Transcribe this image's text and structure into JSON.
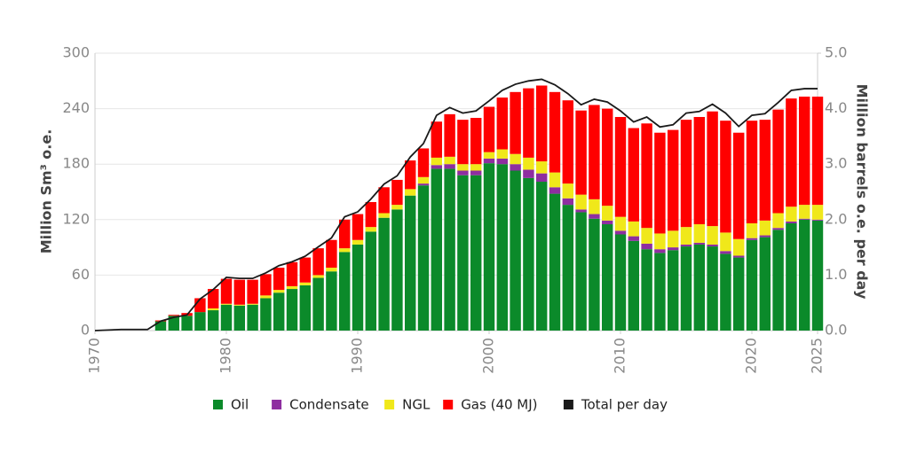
{
  "chart_data": {
    "type": "bar",
    "x": [
      1970,
      1971,
      1972,
      1973,
      1974,
      1975,
      1976,
      1977,
      1978,
      1979,
      1980,
      1981,
      1982,
      1983,
      1984,
      1985,
      1986,
      1987,
      1988,
      1989,
      1990,
      1991,
      1992,
      1993,
      1994,
      1995,
      1996,
      1997,
      1998,
      1999,
      2000,
      2001,
      2002,
      2003,
      2004,
      2005,
      2006,
      2007,
      2008,
      2009,
      2010,
      2011,
      2012,
      2013,
      2014,
      2015,
      2016,
      2017,
      2018,
      2019,
      2020,
      2021,
      2022,
      2023,
      2024,
      2025
    ],
    "y_label": "Million Sm³ o.e.",
    "y2_label": "Million barrels o.e. per day",
    "xlim": [
      1970,
      2025
    ],
    "xticks": [
      1970,
      1980,
      1990,
      2000,
      2010,
      2020,
      2025
    ],
    "ylim": [
      0,
      300
    ],
    "yticks": [
      0,
      60,
      120,
      180,
      240,
      300
    ],
    "y2lim": [
      0,
      5
    ],
    "y2ticks": [
      {
        "value": 0,
        "label": "0.0"
      },
      {
        "value": 1,
        "label": "1.0"
      },
      {
        "value": 2,
        "label": "2.0"
      },
      {
        "value": 3,
        "label": "3.0"
      },
      {
        "value": 4,
        "label": "4.0"
      },
      {
        "value": 5,
        "label": "5.0"
      }
    ],
    "grid": true,
    "legend": "bottom",
    "series": [
      {
        "name": "Oil",
        "color": "#0b8a2a",
        "values": [
          0,
          0,
          0,
          0,
          0,
          10,
          16,
          16,
          20,
          22,
          28,
          27,
          28,
          35,
          41,
          45,
          49,
          57,
          64,
          85,
          93,
          107,
          122,
          131,
          146,
          157,
          175,
          175,
          168,
          168,
          181,
          180,
          173,
          165,
          161,
          148,
          136,
          128,
          121,
          115,
          104,
          97,
          88,
          84,
          87,
          91,
          93,
          91,
          83,
          79,
          98,
          101,
          109,
          116,
          120,
          119
        ]
      },
      {
        "name": "Condensate",
        "color": "#8e2ea0",
        "values": [
          0,
          0,
          0,
          0,
          0,
          0,
          0,
          0,
          0,
          0,
          0,
          0,
          0,
          0,
          0,
          0,
          0,
          0,
          0,
          0,
          0,
          0,
          0,
          0,
          0,
          2,
          4,
          5,
          5,
          5,
          5,
          6,
          7,
          9,
          9,
          7,
          7,
          3,
          5,
          4,
          4,
          5,
          6,
          4,
          3,
          2,
          2,
          2,
          3,
          2,
          2,
          2,
          2,
          2,
          1,
          1
        ]
      },
      {
        "name": "NGL",
        "color": "#f0e81a",
        "values": [
          0,
          0,
          0,
          0,
          0,
          0,
          0,
          0,
          0,
          2,
          1,
          1,
          1,
          3,
          3,
          3,
          3,
          3,
          4,
          4,
          5,
          5,
          5,
          5,
          7,
          7,
          8,
          8,
          7,
          7,
          7,
          10,
          11,
          13,
          13,
          16,
          16,
          16,
          16,
          16,
          15,
          16,
          17,
          17,
          18,
          19,
          20,
          20,
          20,
          18,
          16,
          16,
          16,
          16,
          15,
          16
        ]
      },
      {
        "name": "Gas (40 MJ)",
        "color": "#ff0000",
        "values": [
          0,
          0,
          0,
          0,
          0,
          1,
          1,
          3,
          15,
          21,
          27,
          27,
          26,
          23,
          24,
          26,
          27,
          29,
          30,
          31,
          28,
          27,
          28,
          27,
          31,
          31,
          39,
          46,
          48,
          50,
          49,
          56,
          67,
          75,
          82,
          87,
          90,
          91,
          102,
          105,
          108,
          101,
          113,
          109,
          109,
          116,
          116,
          124,
          121,
          115,
          111,
          109,
          112,
          117,
          117,
          117
        ]
      },
      {
        "name": "Total per day",
        "color": "#1a1a1a",
        "type": "line",
        "axis": "y2",
        "values": [
          0,
          0.01,
          0.02,
          0.02,
          0.02,
          0.17,
          0.24,
          0.28,
          0.57,
          0.74,
          0.96,
          0.94,
          0.94,
          1.04,
          1.17,
          1.24,
          1.34,
          1.51,
          1.67,
          2.05,
          2.14,
          2.37,
          2.64,
          2.79,
          3.13,
          3.37,
          3.88,
          4.02,
          3.92,
          3.96,
          4.14,
          4.33,
          4.44,
          4.5,
          4.53,
          4.43,
          4.27,
          4.07,
          4.17,
          4.12,
          3.96,
          3.76,
          3.85,
          3.67,
          3.71,
          3.92,
          3.95,
          4.08,
          3.92,
          3.68,
          3.88,
          3.91,
          4.11,
          4.33,
          4.36,
          4.36
        ]
      }
    ]
  }
}
